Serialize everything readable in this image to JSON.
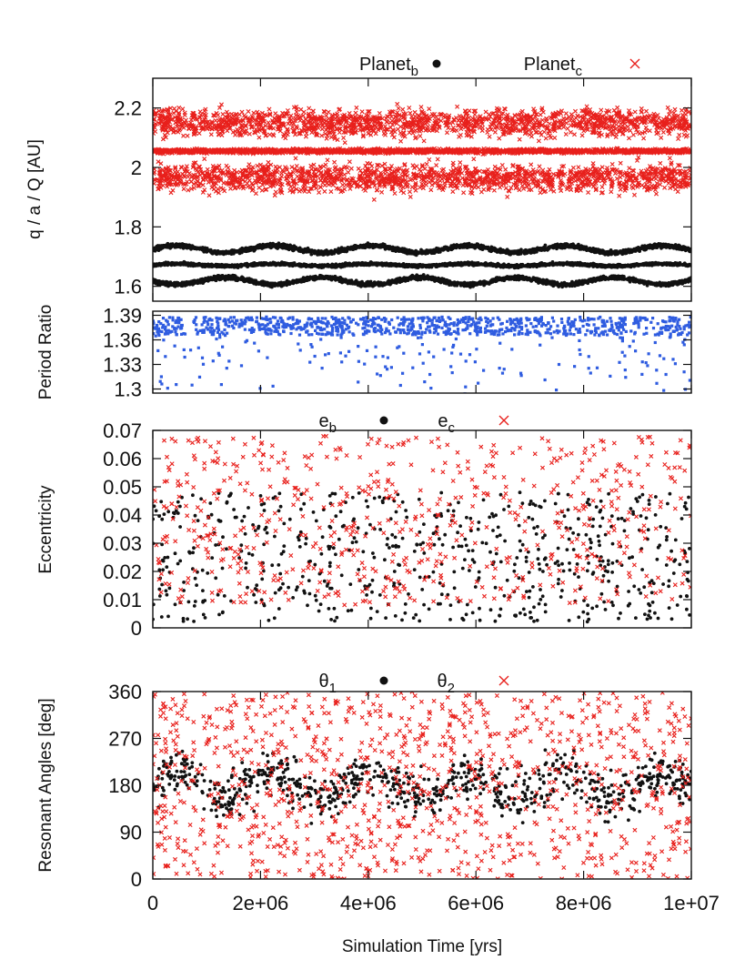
{
  "colors": {
    "planet_b": "#111111",
    "planet_c": "#e8201c",
    "period_ratio": "#2f5ce0"
  },
  "x_axis": {
    "label": "Simulation Time [yrs]",
    "range": [
      0,
      10000000
    ],
    "ticks": [
      0,
      2000000,
      4000000,
      6000000,
      8000000,
      10000000
    ],
    "tick_labels": [
      "0",
      "2e+06",
      "4e+06",
      "6e+06",
      "8e+06",
      "1e+07"
    ]
  },
  "chart_data": [
    {
      "type": "scatter",
      "ylabel": "q / a / Q [AU]",
      "ylim": [
        1.55,
        2.3
      ],
      "yticks": [
        1.6,
        1.8,
        2,
        2.2
      ],
      "ytick_labels": [
        "1.6",
        "1.8",
        "2",
        "2.2"
      ],
      "legend": {
        "placement": "top",
        "entries": [
          {
            "main": "Planet",
            "sub": "b",
            "marker": "dot",
            "series": "planet_b"
          },
          {
            "main": "Planet",
            "sub": "c",
            "marker": "cross",
            "series": "planet_c"
          }
        ]
      },
      "series": [
        {
          "key": "planet_b",
          "marker": "dot",
          "bands": [
            {
              "label": "Q",
              "center": 1.725,
              "amplitude": 0.012,
              "scatter": 0.006,
              "period": 1800000,
              "n": 1800
            },
            {
              "label": "a",
              "center": 1.672,
              "amplitude": 0.004,
              "scatter": 0.004,
              "period": 1800000,
              "n": 1800
            },
            {
              "label": "q",
              "center": 1.618,
              "amplitude": 0.012,
              "scatter": 0.006,
              "period": 1800000,
              "n": 1800
            }
          ]
        },
        {
          "key": "planet_c",
          "marker": "cross",
          "bands": [
            {
              "label": "Q",
              "center": 2.15,
              "amplitude": 0.0,
              "scatter": 0.04,
              "period": 1800000,
              "n": 1600
            },
            {
              "label": "a",
              "center": 2.055,
              "amplitude": 0.0,
              "scatter": 0.006,
              "period": 1800000,
              "n": 1800
            },
            {
              "label": "q",
              "center": 1.965,
              "amplitude": 0.0,
              "scatter": 0.04,
              "period": 1800000,
              "n": 1600
            }
          ]
        }
      ]
    },
    {
      "type": "scatter",
      "ylabel": "Period Ratio",
      "ylim": [
        1.295,
        1.395
      ],
      "yticks": [
        1.3,
        1.33,
        1.36,
        1.39
      ],
      "ytick_labels": [
        "1.3",
        "1.33",
        "1.36",
        "1.39"
      ],
      "series": [
        {
          "key": "period_ratio",
          "marker": "square",
          "dense_range": [
            1.366,
            1.388
          ],
          "n_dense": 900,
          "n_sparse": 160,
          "sparse_min": 1.29
        }
      ]
    },
    {
      "type": "scatter",
      "ylabel": "Eccentricity",
      "ylim": [
        0,
        0.07
      ],
      "yticks": [
        0,
        0.01,
        0.02,
        0.03,
        0.04,
        0.05,
        0.06,
        0.07
      ],
      "ytick_labels": [
        "0",
        "0.01",
        "0.02",
        "0.03",
        "0.04",
        "0.05",
        "0.06",
        "0.07"
      ],
      "legend": {
        "placement": "top",
        "entries": [
          {
            "main": "e",
            "sub": "b",
            "marker": "dot",
            "series": "planet_b"
          },
          {
            "main": "e",
            "sub": "c",
            "marker": "cross",
            "series": "planet_c"
          }
        ]
      },
      "series": [
        {
          "key": "planet_b",
          "marker": "dot",
          "range": [
            0.002,
            0.048
          ],
          "n": 650
        },
        {
          "key": "planet_c",
          "marker": "cross",
          "range": [
            0.008,
            0.068
          ],
          "n": 650
        }
      ]
    },
    {
      "type": "scatter",
      "ylabel": "Resonant Angles [deg]",
      "ylim": [
        0,
        360
      ],
      "yticks": [
        0,
        90,
        180,
        270,
        360
      ],
      "ytick_labels": [
        "0",
        "90",
        "180",
        "270",
        "360"
      ],
      "legend": {
        "placement": "top",
        "entries": [
          {
            "main": "θ",
            "sub": "1",
            "marker": "dot",
            "series": "planet_b"
          },
          {
            "main": "θ",
            "sub": "2",
            "marker": "cross",
            "series": "planet_c"
          }
        ]
      },
      "series": [
        {
          "key": "planet_b",
          "marker": "dot",
          "center": 180,
          "spread": 75,
          "n": 800
        },
        {
          "key": "planet_c",
          "marker": "cross",
          "range": [
            0,
            360
          ],
          "n": 1100
        }
      ]
    }
  ]
}
